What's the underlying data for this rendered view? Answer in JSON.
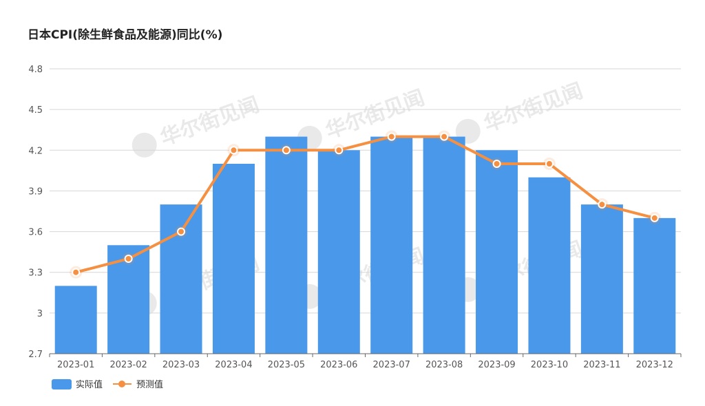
{
  "chart_data": {
    "type": "bar",
    "title": "日本CPI(除生鲜食品及能源)同比(%)",
    "categories": [
      "2023-01",
      "2023-02",
      "2023-03",
      "2023-04",
      "2023-05",
      "2023-06",
      "2023-07",
      "2023-08",
      "2023-09",
      "2023-10",
      "2023-11",
      "2023-12"
    ],
    "series": [
      {
        "name": "实际值",
        "type": "bar",
        "values": [
          3.2,
          3.5,
          3.8,
          4.1,
          4.3,
          4.2,
          4.3,
          4.3,
          4.2,
          4.0,
          3.8,
          3.7
        ]
      },
      {
        "name": "预测值",
        "type": "line",
        "values": [
          3.3,
          3.4,
          3.6,
          4.2,
          4.2,
          4.2,
          4.3,
          4.3,
          4.1,
          4.1,
          3.8,
          3.7
        ]
      }
    ],
    "yticks": [
      "2.7",
      "3",
      "3.3",
      "3.6",
      "3.9",
      "4.2",
      "4.5",
      "4.8"
    ],
    "ylim": [
      2.7,
      4.8
    ],
    "grid": true,
    "legend_position": "bottom-left",
    "colors": {
      "bar": "#4a98e9",
      "line": "#f59042",
      "grid": "#d6d6d6",
      "axis": "#555555"
    },
    "watermark": "华尔街见闻"
  }
}
